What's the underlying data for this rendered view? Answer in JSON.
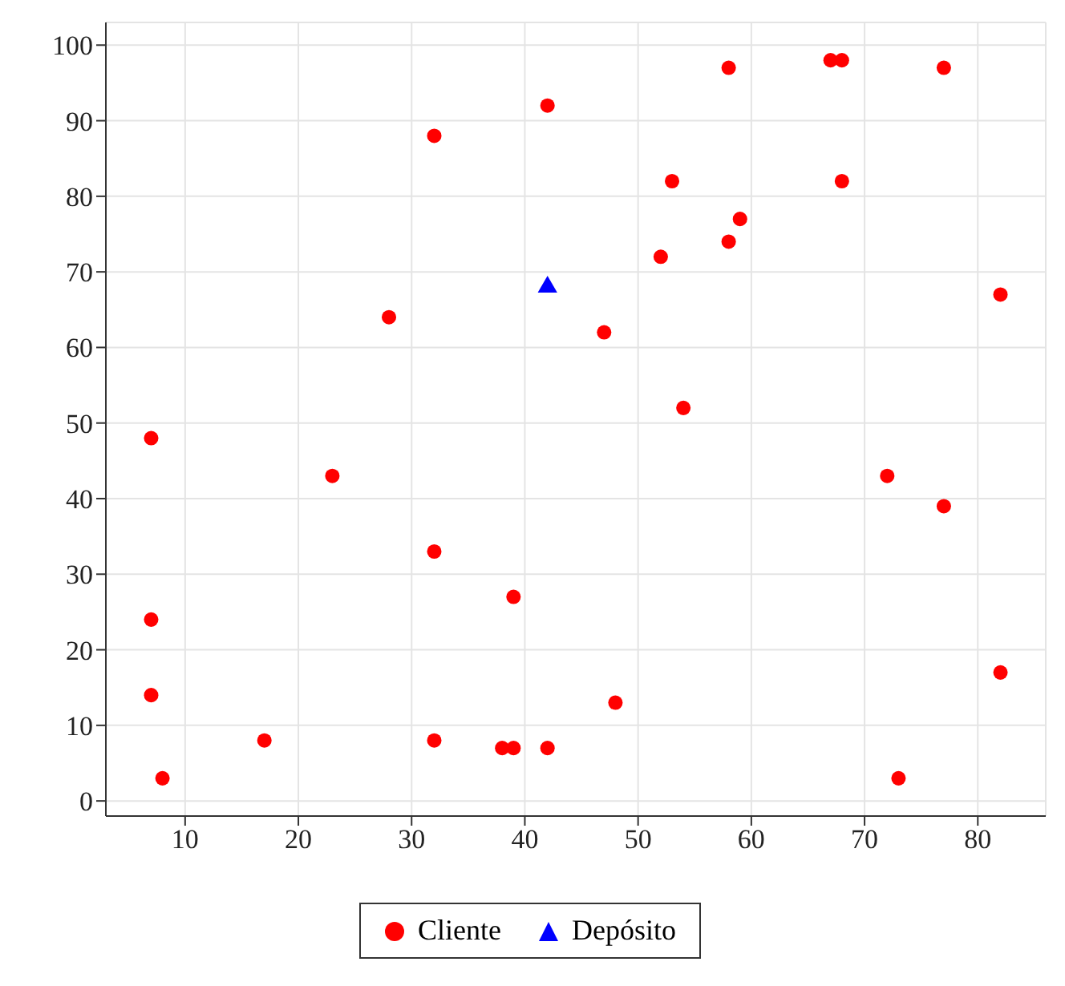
{
  "chart_data": {
    "type": "scatter",
    "xlim": [
      3,
      86
    ],
    "ylim": [
      -2,
      103
    ],
    "xticks": [
      10,
      20,
      30,
      40,
      50,
      60,
      70,
      80
    ],
    "yticks": [
      0,
      10,
      20,
      30,
      40,
      50,
      60,
      70,
      80,
      90,
      100
    ],
    "grid": true,
    "legend": "bottom",
    "series": [
      {
        "name": "Cliente",
        "color": "#ff0000",
        "marker": "circle",
        "x": [
          7,
          7,
          7,
          8,
          17,
          23,
          28,
          32,
          32,
          32,
          38,
          39,
          39,
          42,
          42,
          47,
          48,
          52,
          53,
          54,
          58,
          58,
          59,
          67,
          68,
          68,
          72,
          73,
          77,
          77,
          82,
          82
        ],
        "values": [
          48,
          24,
          14,
          3,
          8,
          43,
          64,
          88,
          33,
          8,
          7,
          7,
          27,
          92,
          7,
          62,
          13,
          72,
          82,
          52,
          97,
          74,
          77,
          98,
          98,
          82,
          43,
          3,
          97,
          39,
          67,
          17
        ]
      },
      {
        "name": "Depósito",
        "color": "#0000ff",
        "marker": "triangle",
        "x": [
          42
        ],
        "values": [
          68
        ]
      }
    ]
  }
}
